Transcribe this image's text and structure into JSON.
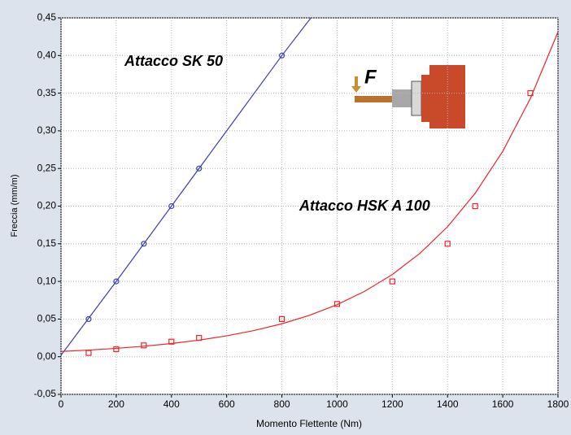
{
  "chart_data": {
    "type": "scatter",
    "xlabel": "Momento Flettente (Nm)",
    "ylabel": "Freccia (mm/m)",
    "icon_label": "F",
    "xlim": [
      0,
      1800
    ],
    "xticks": [
      0,
      200,
      400,
      600,
      800,
      1000,
      1200,
      1400,
      1600,
      1800
    ],
    "ylim": [
      -0.05,
      0.45
    ],
    "yticks": [
      {
        "value": -0.05,
        "label": "-0,05"
      },
      {
        "value": 0,
        "label": "0,00"
      },
      {
        "value": 0.05,
        "label": "0,05"
      },
      {
        "value": 0.1,
        "label": "0,10"
      },
      {
        "value": 0.15,
        "label": "0,15"
      },
      {
        "value": 0.2,
        "label": "0,20"
      },
      {
        "value": 0.25,
        "label": "0,25"
      },
      {
        "value": 0.3,
        "label": "0,30"
      },
      {
        "value": 0.35,
        "label": "0,35"
      },
      {
        "value": 0.4,
        "label": "0,40"
      },
      {
        "value": 0.45,
        "label": "0,45"
      }
    ],
    "grid": true,
    "series": [
      {
        "name": "Attacco SK 50",
        "color": "#3c3cb4",
        "marker": "circle",
        "x": [
          100,
          200,
          300,
          400,
          500,
          800
        ],
        "values": [
          0.05,
          0.1,
          0.15,
          0.2,
          0.25,
          0.4
        ],
        "fit_x": [
          0,
          200,
          400,
          600,
          800,
          905
        ],
        "fit_values": [
          0.002,
          0.1,
          0.2,
          0.3,
          0.4,
          0.45
        ]
      },
      {
        "name": "Attacco HSK A 100",
        "color": "#e8262a",
        "marker": "square",
        "x": [
          100,
          200,
          300,
          400,
          500,
          800,
          1000,
          1200,
          1400,
          1500,
          1700
        ],
        "values": [
          0.005,
          0.01,
          0.015,
          0.02,
          0.025,
          0.05,
          0.07,
          0.1,
          0.15,
          0.2,
          0.35
        ],
        "fit_x": [
          0,
          100,
          200,
          300,
          400,
          500,
          600,
          700,
          800,
          900,
          1000,
          1100,
          1200,
          1300,
          1400,
          1500,
          1600,
          1700,
          1800
        ],
        "fit_values": [
          0.007,
          0.0088,
          0.0111,
          0.0139,
          0.0175,
          0.022,
          0.0277,
          0.0348,
          0.0437,
          0.055,
          0.0691,
          0.0869,
          0.1092,
          0.1373,
          0.1726,
          0.217,
          0.2728,
          0.343,
          0.4312
        ]
      }
    ]
  }
}
